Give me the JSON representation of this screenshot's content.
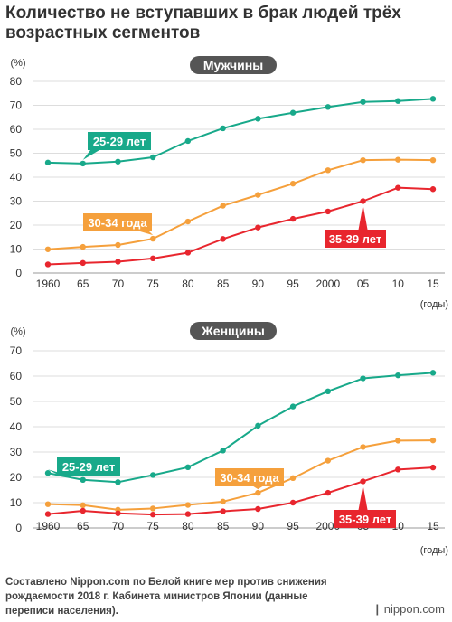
{
  "title": "Количество не вступавших в брак людей трёх возрастных сегментов",
  "source": "Составлено Nippon.com по Белой книге мер против снижения рождаемости 2018 г. Кабинета министров Японии (данные переписи населения).",
  "logo_text": "nippon.com",
  "colors": {
    "green": "#18a98a",
    "orange": "#f5a03c",
    "red": "#e8262e",
    "grid": "#dddddd",
    "panel": "#555555"
  },
  "chart_data": [
    {
      "type": "line",
      "title": "Мужчины",
      "ylabel": "(%)",
      "xlabel": "(годы)",
      "x": [
        "1960",
        "65",
        "70",
        "75",
        "80",
        "85",
        "90",
        "95",
        "2000",
        "05",
        "10",
        "15"
      ],
      "ylim": [
        0,
        80
      ],
      "yticks": [
        0,
        10,
        20,
        30,
        40,
        50,
        60,
        70,
        80
      ],
      "grid": true,
      "series": [
        {
          "name": "25-29 лет",
          "color": "#18a98a",
          "values": [
            46.1,
            45.7,
            46.5,
            48.3,
            55.1,
            60.4,
            64.4,
            66.9,
            69.3,
            71.4,
            71.8,
            72.7
          ]
        },
        {
          "name": "30-34 года",
          "color": "#f5a03c",
          "values": [
            9.9,
            10.9,
            11.7,
            14.3,
            21.5,
            28.1,
            32.6,
            37.3,
            42.9,
            47.1,
            47.3,
            47.1
          ]
        },
        {
          "name": "35-39 лет",
          "color": "#e8262e",
          "values": [
            3.6,
            4.2,
            4.7,
            6.1,
            8.5,
            14.2,
            19.0,
            22.6,
            25.7,
            30.0,
            35.6,
            35.0
          ]
        }
      ]
    },
    {
      "type": "line",
      "title": "Женщины",
      "ylabel": "(%)",
      "xlabel": "(годы)",
      "x": [
        "1960",
        "65",
        "70",
        "75",
        "80",
        "85",
        "90",
        "95",
        "2000",
        "05",
        "10",
        "15"
      ],
      "ylim": [
        0,
        70
      ],
      "yticks": [
        0,
        10,
        20,
        30,
        40,
        50,
        60,
        70
      ],
      "grid": true,
      "series": [
        {
          "name": "25-29 лет",
          "color": "#18a98a",
          "values": [
            21.7,
            19.0,
            18.1,
            20.9,
            24.0,
            30.6,
            40.4,
            48.0,
            54.0,
            59.1,
            60.3,
            61.3
          ]
        },
        {
          "name": "30-34 года",
          "color": "#f5a03c",
          "values": [
            9.4,
            9.0,
            7.2,
            7.7,
            9.1,
            10.4,
            13.9,
            19.7,
            26.6,
            32.0,
            34.5,
            34.6
          ]
        },
        {
          "name": "35-39 лет",
          "color": "#e8262e",
          "values": [
            5.5,
            6.8,
            5.8,
            5.3,
            5.5,
            6.6,
            7.5,
            10.0,
            13.9,
            18.4,
            23.1,
            23.9
          ]
        }
      ]
    }
  ]
}
